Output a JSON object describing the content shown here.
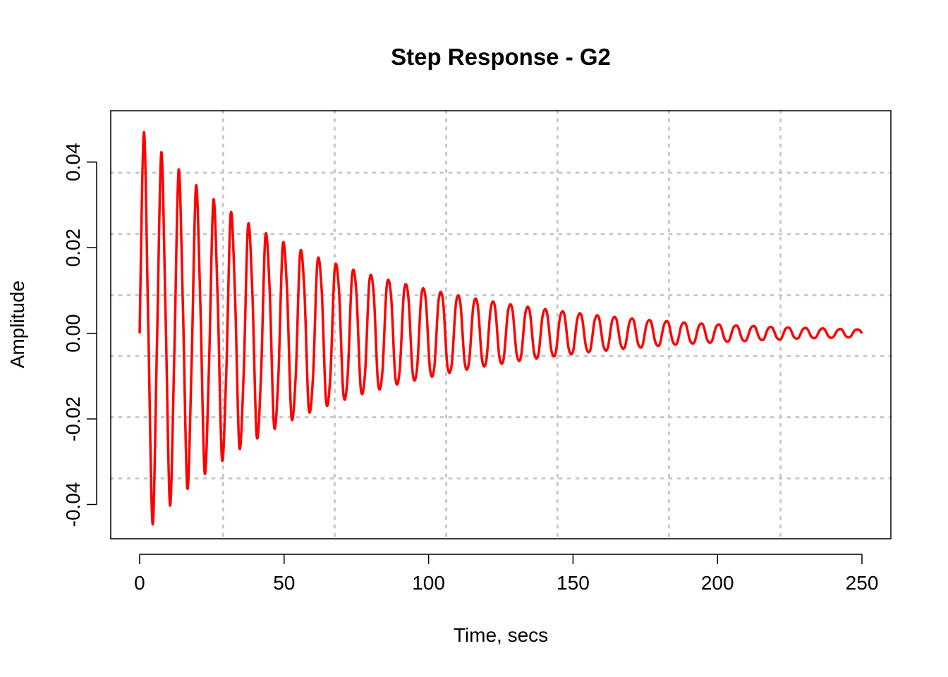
{
  "chart_data": {
    "type": "line",
    "title": "Step Response - G2",
    "xlabel": "Time, secs",
    "ylabel": "Amplitude",
    "xlim": [
      -10,
      260
    ],
    "ylim": [
      -0.048,
      0.052
    ],
    "x_ticks": [
      0,
      50,
      100,
      150,
      200,
      250
    ],
    "x_tick_labels": [
      "0",
      "50",
      "100",
      "150",
      "200",
      "250"
    ],
    "y_ticks": [
      -0.04,
      -0.02,
      0.0,
      0.02,
      0.04
    ],
    "y_tick_labels": [
      "-0.04",
      "-0.02",
      "0.00",
      "0.02",
      "0.04"
    ],
    "grid": true,
    "grid_x": [
      28.9,
      67.5,
      106.1,
      144.6,
      183.2,
      221.8
    ],
    "grid_y": [
      -0.0339,
      -0.0196,
      -0.0053,
      0.0089,
      0.0232,
      0.0375
    ],
    "legend": "none",
    "series_color": "#ff0000",
    "series": [
      {
        "x": [
          0,
          1.5,
          3.0,
          4.5,
          6.0,
          7.5,
          9.0,
          10.5,
          12.0,
          13.5,
          15.0,
          16.5,
          18.0,
          19.5,
          21.0,
          22.5,
          24.0,
          25.5,
          27.0,
          28.5,
          30.0,
          31.5,
          33.0,
          34.5,
          36.0,
          37.5,
          39.0,
          40.5,
          42.0,
          43.5,
          45.0,
          46.5,
          48.0,
          49.5,
          51.0,
          52.5,
          54.0,
          55.5,
          57.0,
          58.5,
          60.0,
          61.5,
          63.0,
          64.5,
          66.0,
          67.5,
          69.0,
          70.5,
          72.0,
          73.5,
          75.0,
          76.5,
          78.0,
          79.5,
          81.0,
          82.5,
          84.0,
          85.5,
          87.0,
          88.5,
          90.0,
          91.5,
          93.0,
          94.5,
          96.0,
          97.5,
          99.0,
          100.5,
          102.0,
          103.5,
          105.0,
          106.5,
          108.0,
          109.5,
          111.0,
          112.5,
          114.0,
          115.5,
          117.0,
          118.5,
          120.0,
          121.5,
          123.0,
          124.5,
          126.0,
          127.5,
          129.0,
          130.5,
          132.0,
          133.5,
          135.0,
          136.5,
          138.0,
          139.5,
          141.0,
          142.5,
          144.0,
          145.5,
          147.0,
          148.5,
          150.0,
          151.5,
          153.0,
          154.5,
          156.0,
          157.5,
          159.0,
          160.5,
          162.0,
          163.5,
          165.0,
          166.5,
          168.0,
          169.5,
          171.0,
          172.5,
          174.0,
          175.5,
          177.0,
          178.5,
          180.0,
          181.5,
          183.0,
          184.5,
          186.0,
          187.5,
          189.0,
          190.5,
          192.0,
          193.5,
          195.0,
          196.5,
          198.0,
          199.5,
          201.0,
          202.5,
          204.0,
          205.5,
          207.0,
          208.5,
          210.0,
          211.5,
          213.0,
          214.5,
          216.0,
          217.5,
          219.0,
          220.5,
          222.0,
          223.5,
          225.0,
          226.5,
          228.0,
          229.5,
          231.0,
          232.5,
          234.0,
          235.5,
          237.0,
          238.5,
          240.0,
          241.5,
          243.0,
          244.5,
          246.0,
          247.5,
          249.0,
          250.0
        ],
        "y": [
          0.0,
          0.047,
          0.0014,
          -0.0446,
          -0.0027,
          0.0423,
          0.0038,
          -0.0402,
          -0.0049,
          0.0382,
          0.0058,
          -0.0362,
          -0.0066,
          0.0344,
          0.0073,
          -0.0326,
          -0.0079,
          0.031,
          0.0084,
          -0.0294,
          -0.0089,
          0.0279,
          0.0093,
          -0.0265,
          -0.0096,
          0.0251,
          0.0098,
          -0.0239,
          -0.01,
          0.0226,
          0.0102,
          -0.0215,
          -0.0103,
          0.0204,
          0.0103,
          -0.0193,
          -0.0103,
          0.0184,
          0.0103,
          -0.0174,
          -0.0103,
          0.0165,
          0.0102,
          -0.0157,
          -0.0101,
          0.0149,
          0.01,
          -0.0141,
          -0.0099,
          0.0134,
          0.0097,
          -0.0127,
          -0.0095,
          0.0121,
          0.0094,
          -0.0115,
          -0.0092,
          0.0109,
          0.0089,
          -0.0103,
          -0.0087,
          0.0098,
          0.0085,
          -0.0093,
          -0.0083,
          0.0088,
          0.008,
          -0.0084,
          -0.0078,
          0.0079,
          0.0076,
          -0.0075,
          -0.0073,
          0.0071,
          0.0071,
          -0.0068,
          -0.0068,
          0.0064,
          0.0066,
          -0.0061,
          -0.0063,
          0.0058,
          0.0061,
          -0.0055,
          -0.0059,
          0.0052,
          0.0056,
          -0.0049,
          -0.0054,
          0.0047,
          0.0052,
          -0.0044,
          -0.005,
          0.0042,
          0.0048,
          -0.004,
          -0.0046,
          0.0038,
          0.0044,
          -0.0036,
          -0.0042,
          0.0034,
          0.004,
          -0.0032,
          -0.0038,
          0.0031,
          0.0036,
          -0.0029,
          -0.0035,
          0.0028,
          0.0033,
          -0.0026,
          -0.0031,
          0.0025,
          0.003,
          -0.0024,
          -0.0029,
          0.0022,
          0.0027,
          -0.0021,
          -0.0026,
          0.002,
          0.0025,
          -0.0019,
          -0.0023,
          0.0018,
          0.0022,
          -0.0017,
          -0.0021,
          0.0016,
          0.002,
          -0.0016,
          -0.0019,
          0.0015,
          0.0018,
          -0.0014,
          -0.0017,
          0.0013,
          0.0016,
          -0.0013,
          -0.0016,
          0.0012,
          0.0015,
          -0.0011,
          -0.0014,
          0.0011,
          0.0013,
          -0.001,
          -0.0013,
          0.001,
          0.0012,
          -0.0009,
          -0.0011,
          0.0009,
          0.0011,
          -0.0008,
          -0.001,
          0.0008,
          0.001,
          -0.0008,
          -0.0009,
          0.0007,
          0.0009,
          -0.0007,
          -0.0008,
          0.0007,
          0.0008,
          0.0
        ]
      }
    ]
  }
}
